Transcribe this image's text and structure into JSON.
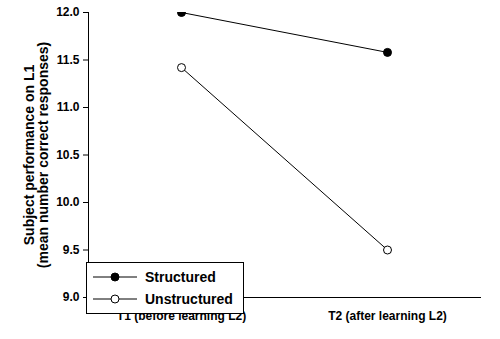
{
  "chart_data": {
    "type": "line",
    "y_label": "Subject performance on L1\n(mean number correct responses)",
    "categories": [
      "T1 (before learning L2)",
      "T2 (after learning L2)"
    ],
    "series": [
      {
        "name": "Structured",
        "color": "#000000",
        "marker": "filled",
        "values": [
          12.0,
          11.58
        ]
      },
      {
        "name": "Unstructured",
        "color": "#000000",
        "marker": "open",
        "values": [
          11.42,
          9.5
        ]
      }
    ],
    "ylim": [
      9,
      12
    ],
    "yticks": [
      {
        "value": 9,
        "label": "9.0"
      },
      9.5,
      {
        "value": 10,
        "label": "10.0"
      },
      10.5,
      {
        "value": 11,
        "label": "11.0"
      },
      11.5,
      {
        "value": 12,
        "label": "12.0"
      }
    ],
    "legend": "lower left"
  }
}
